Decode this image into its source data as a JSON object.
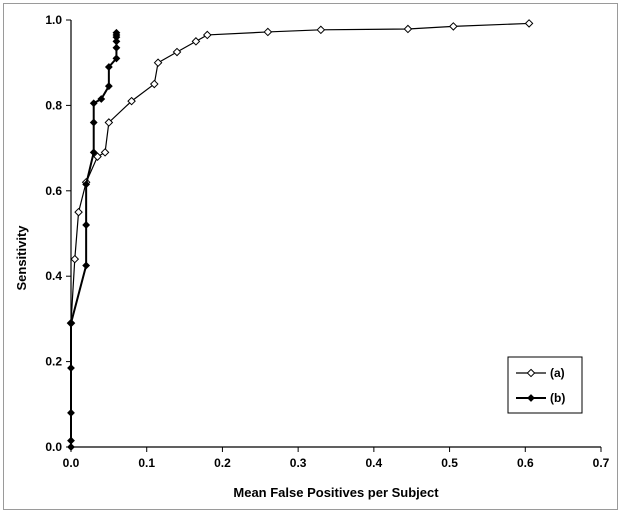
{
  "chart_data": {
    "type": "line",
    "title": "",
    "xlabel": "Mean False Positives per Subject",
    "ylabel": "Sensitivity",
    "xlim": [
      0,
      0.7
    ],
    "ylim": [
      0,
      1.0
    ],
    "x_ticks": [
      "0.0",
      "0.1",
      "0.2",
      "0.3",
      "0.4",
      "0.5",
      "0.6",
      "0.7"
    ],
    "y_ticks": [
      "0.0",
      "0.2",
      "0.4",
      "0.6",
      "0.8",
      "1.0"
    ],
    "grid": false,
    "legend_position": "bottom-right",
    "series": [
      {
        "name": "(a)",
        "marker": "open-diamond",
        "color": "#000000",
        "x": [
          0,
          0.005,
          0.01,
          0.02,
          0.035,
          0.045,
          0.05,
          0.08,
          0.11,
          0.115,
          0.14,
          0.165,
          0.18,
          0.26,
          0.33,
          0.445,
          0.505,
          0.605
        ],
        "y": [
          0.29,
          0.44,
          0.55,
          0.62,
          0.68,
          0.69,
          0.76,
          0.81,
          0.85,
          0.9,
          0.925,
          0.95,
          0.965,
          0.972,
          0.977,
          0.979,
          0.985,
          0.992
        ]
      },
      {
        "name": "(b)",
        "marker": "filled-diamond",
        "color": "#000000",
        "x": [
          0,
          0,
          0,
          0,
          0,
          0,
          0.02,
          0.02,
          0.02,
          0.03,
          0.03,
          0.03,
          0.04,
          0.05,
          0.05,
          0.06,
          0.06,
          0.06,
          0.06,
          0.06,
          0.06
        ],
        "y": [
          0.0,
          0.015,
          0.08,
          0.185,
          0.29,
          0.29,
          0.425,
          0.52,
          0.615,
          0.69,
          0.76,
          0.805,
          0.815,
          0.845,
          0.89,
          0.91,
          0.935,
          0.95,
          0.96,
          0.965,
          0.97
        ]
      }
    ]
  }
}
